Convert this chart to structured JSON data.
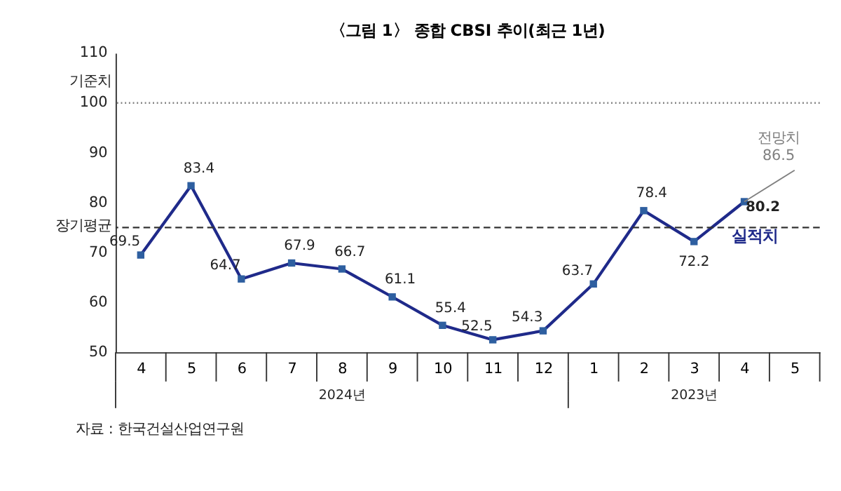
{
  "chart_data": {
    "type": "line",
    "title": "〈그림 1〉 종합 CBSI 추이(최근 1년)",
    "categories": [
      "4",
      "5",
      "6",
      "7",
      "8",
      "9",
      "10",
      "11",
      "12",
      "1",
      "2",
      "3",
      "4",
      "5"
    ],
    "series": [
      {
        "name": "실적치",
        "color": "#1f2a8a",
        "values": [
          69.5,
          83.4,
          64.7,
          67.9,
          66.7,
          61.1,
          55.4,
          52.5,
          54.3,
          63.7,
          78.4,
          72.2,
          80.2,
          null
        ],
        "value_labels": [
          "69.5",
          "83.4",
          "64.7",
          "67.9",
          "66.7",
          "61.1",
          "55.4",
          "52.5",
          "54.3",
          "63.7",
          "78.4",
          "72.2",
          "80.2",
          null
        ],
        "marker": "square",
        "line_style": "solid"
      },
      {
        "name": "전망치",
        "color": "#808080",
        "values": [
          null,
          null,
          null,
          null,
          null,
          null,
          null,
          null,
          null,
          null,
          null,
          null,
          80.2,
          86.5
        ],
        "value_labels": [
          null,
          null,
          null,
          null,
          null,
          null,
          null,
          null,
          null,
          null,
          null,
          null,
          null,
          "86.5"
        ],
        "marker": "none",
        "line_style": "solid"
      }
    ],
    "ylim": [
      50,
      110
    ],
    "yticks": [
      50,
      60,
      70,
      80,
      90,
      100,
      110
    ],
    "grid": false,
    "ref_lines": [
      {
        "axis": "y",
        "value": 100,
        "label": "기준치",
        "color": "#808080",
        "line_style": "dotted"
      },
      {
        "axis": "y",
        "value": 75,
        "label": "장기평균",
        "color": "#333333",
        "line_style": "dashed"
      }
    ],
    "annotations": [
      "2024년",
      "2023년",
      "자료 : 한국건설산업연구원"
    ]
  }
}
